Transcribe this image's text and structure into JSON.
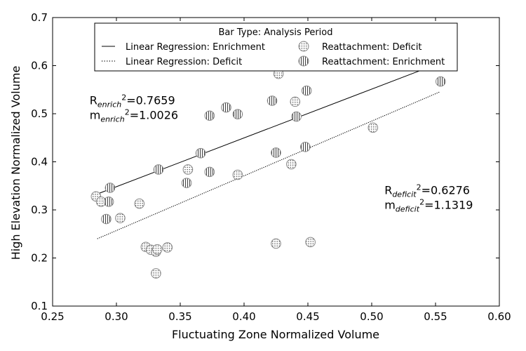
{
  "chart_data": {
    "type": "scatter",
    "title": "",
    "xlabel": "Fluctuating Zone Normalized Volume",
    "ylabel": "High Elevation Normalized Volume",
    "xlim": [
      0.25,
      0.6
    ],
    "ylim": [
      0.1,
      0.7
    ],
    "x_ticks": [
      0.25,
      0.3,
      0.35,
      0.4,
      0.45,
      0.5,
      0.55,
      0.6
    ],
    "x_tick_labels": [
      "0.25",
      "0.30",
      "0.35",
      "0.40",
      "0.45",
      "0.50",
      "0.55",
      "0.60"
    ],
    "y_ticks": [
      0.1,
      0.2,
      0.3,
      0.4,
      0.5,
      0.6,
      0.7
    ],
    "y_tick_labels": [
      "0.1",
      "0.2",
      "0.3",
      "0.4",
      "0.5",
      "0.6",
      "0.7"
    ],
    "grid": false,
    "legend": {
      "title": "Bar Type: Analysis Period",
      "placement": "top-center",
      "entries": [
        {
          "label": "Linear Regression: Enrichment",
          "marker": "solid-line"
        },
        {
          "label": "Linear Regression: Deficit",
          "marker": "dotted-line"
        },
        {
          "label": "Reattachment: Deficit",
          "marker": "dotted-circle"
        },
        {
          "label": "Reattachment: Enrichment",
          "marker": "hatched-circle"
        }
      ]
    },
    "series": [
      {
        "name": "Reattachment: Deficit",
        "marker": "dotted-circle",
        "points": [
          [
            0.284,
            0.328
          ],
          [
            0.288,
            0.317
          ],
          [
            0.303,
            0.283
          ],
          [
            0.318,
            0.313
          ],
          [
            0.323,
            0.223
          ],
          [
            0.327,
            0.217
          ],
          [
            0.331,
            0.213
          ],
          [
            0.332,
            0.218
          ],
          [
            0.331,
            0.168
          ],
          [
            0.34,
            0.222
          ],
          [
            0.356,
            0.384
          ],
          [
            0.395,
            0.373
          ],
          [
            0.425,
            0.23
          ],
          [
            0.427,
            0.583
          ],
          [
            0.437,
            0.395
          ],
          [
            0.44,
            0.525
          ],
          [
            0.452,
            0.233
          ],
          [
            0.501,
            0.471
          ]
        ]
      },
      {
        "name": "Reattachment: Enrichment",
        "marker": "hatched-circle",
        "points": [
          [
            0.292,
            0.281
          ],
          [
            0.294,
            0.317
          ],
          [
            0.295,
            0.346
          ],
          [
            0.333,
            0.384
          ],
          [
            0.355,
            0.356
          ],
          [
            0.366,
            0.418
          ],
          [
            0.373,
            0.379
          ],
          [
            0.373,
            0.496
          ],
          [
            0.386,
            0.513
          ],
          [
            0.395,
            0.499
          ],
          [
            0.422,
            0.527
          ],
          [
            0.425,
            0.419
          ],
          [
            0.441,
            0.494
          ],
          [
            0.448,
            0.431
          ],
          [
            0.449,
            0.548
          ],
          [
            0.554,
            0.567
          ]
        ]
      }
    ],
    "regression_lines": [
      {
        "name": "Linear Regression: Enrichment",
        "style": "solid",
        "x": [
          0.285,
          0.555
        ],
        "y": [
          0.333,
          0.607
        ]
      },
      {
        "name": "Linear Regression: Deficit",
        "style": "dotted",
        "x": [
          0.285,
          0.553
        ],
        "y": [
          0.24,
          0.545
        ]
      }
    ],
    "annotations": [
      {
        "id": "enrich",
        "x": 0.279,
        "y": 0.52,
        "lines": [
          {
            "base": "R",
            "sub": "enrich",
            "sup": "2",
            "rest": "=0.7659"
          },
          {
            "base": "m",
            "sub": "enrich",
            "sup": "2",
            "rest": "=1.0026"
          }
        ]
      },
      {
        "id": "deficit",
        "x": 0.51,
        "y": 0.333,
        "lines": [
          {
            "base": "R",
            "sub": "deficit",
            "sup": "2",
            "rest": "=0.6276"
          },
          {
            "base": "m",
            "sub": "deficit",
            "sup": "2",
            "rest": "=1.1319"
          }
        ]
      }
    ]
  }
}
